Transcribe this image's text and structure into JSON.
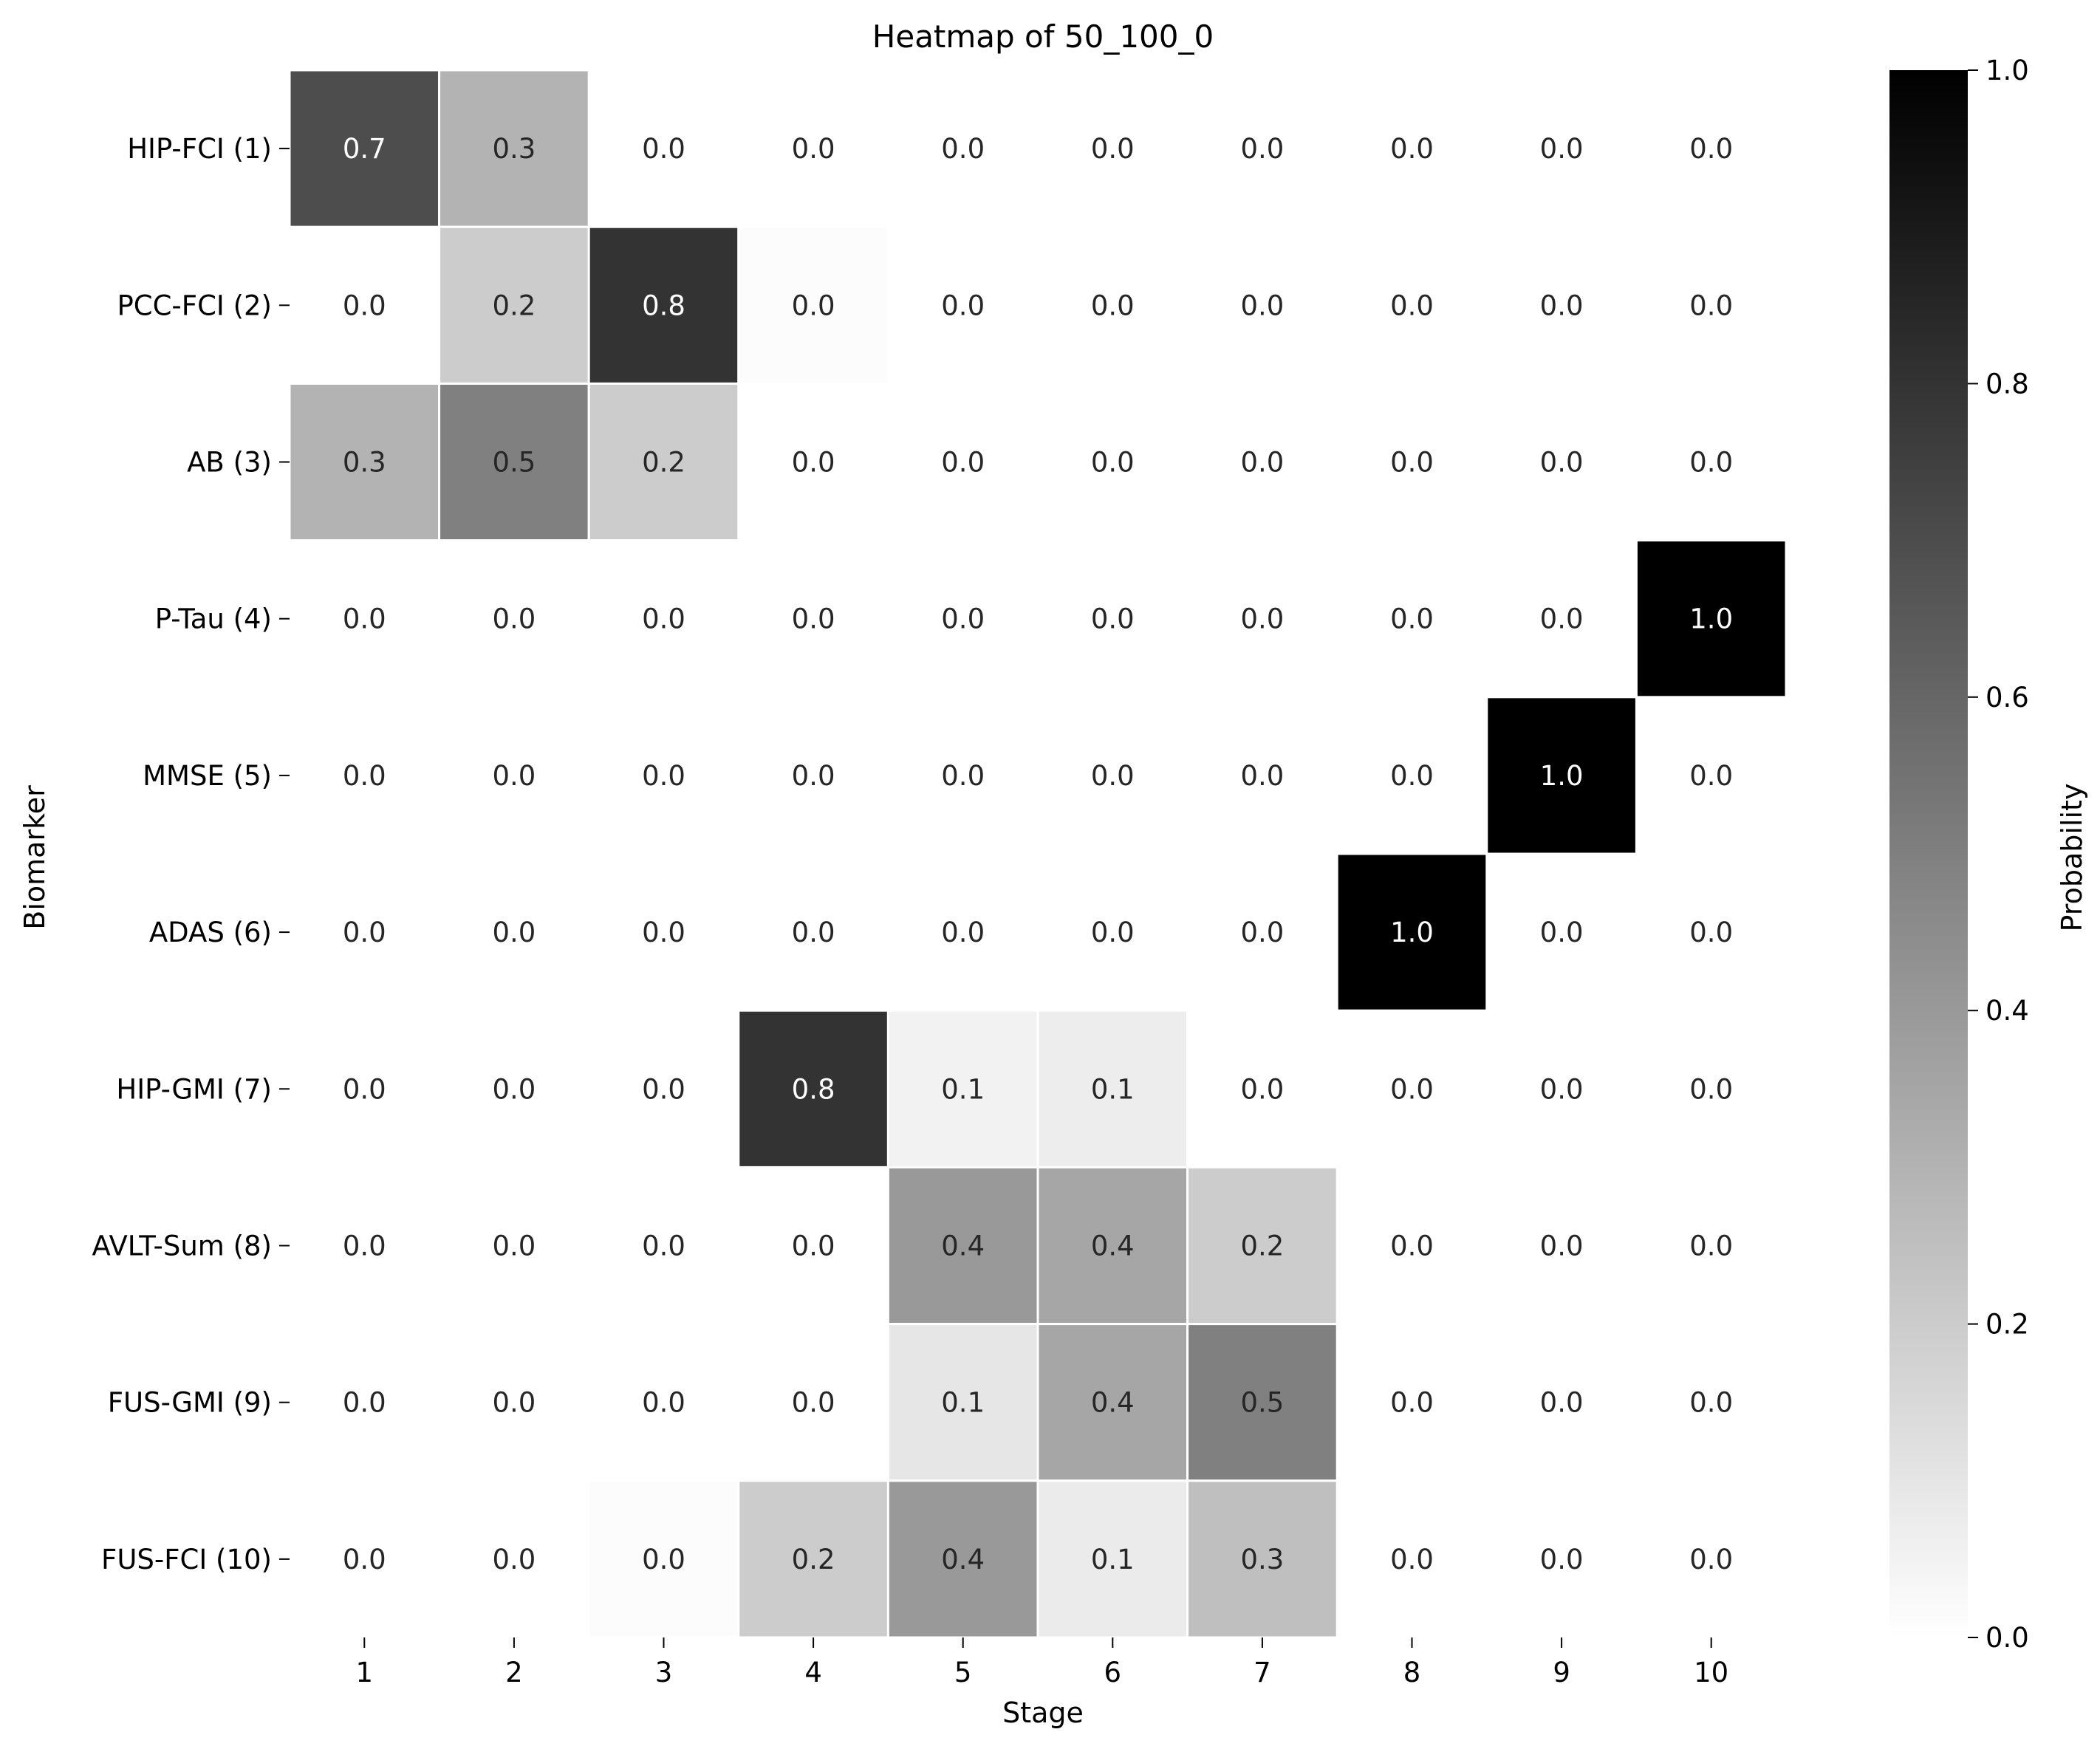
{
  "chart_data": {
    "type": "heatmap",
    "title": "Heatmap of 50_100_0",
    "xlabel": "Stage",
    "ylabel": "Biomarker",
    "x_categories": [
      "1",
      "2",
      "3",
      "4",
      "5",
      "6",
      "7",
      "8",
      "9",
      "10"
    ],
    "y_categories": [
      "HIP-FCI (1)",
      "PCC-FCI (2)",
      "AB (3)",
      "P-Tau (4)",
      "MMSE (5)",
      "ADAS (6)",
      "HIP-GMI (7)",
      "AVLT-Sum (8)",
      "FUS-GMI (9)",
      "FUS-FCI (10)"
    ],
    "values": [
      [
        0.7,
        0.3,
        0.0,
        0.0,
        0.0,
        0.0,
        0.0,
        0.0,
        0.0,
        0.0
      ],
      [
        0.0,
        0.2,
        0.8,
        0.01,
        0.0,
        0.0,
        0.0,
        0.0,
        0.0,
        0.0
      ],
      [
        0.3,
        0.5,
        0.2,
        0.0,
        0.0,
        0.0,
        0.0,
        0.0,
        0.0,
        0.0
      ],
      [
        0.0,
        0.0,
        0.0,
        0.0,
        0.0,
        0.0,
        0.0,
        0.0,
        0.0,
        1.0
      ],
      [
        0.0,
        0.0,
        0.0,
        0.0,
        0.0,
        0.0,
        0.0,
        0.0,
        1.0,
        0.0
      ],
      [
        0.0,
        0.0,
        0.0,
        0.0,
        0.0,
        0.0,
        0.0,
        1.0,
        0.0,
        0.0
      ],
      [
        0.0,
        0.0,
        0.0,
        0.8,
        0.05,
        0.07,
        0.0,
        0.0,
        0.0,
        0.0
      ],
      [
        0.0,
        0.0,
        0.0,
        0.0,
        0.4,
        0.35,
        0.2,
        0.0,
        0.0,
        0.0
      ],
      [
        0.0,
        0.0,
        0.0,
        0.0,
        0.1,
        0.35,
        0.5,
        0.0,
        0.0,
        0.0
      ],
      [
        0.0,
        0.0,
        0.01,
        0.2,
        0.4,
        0.08,
        0.25,
        0.0,
        0.0,
        0.0
      ]
    ],
    "cell_labels": [
      [
        "0.7",
        "0.3",
        "0.0",
        "0.0",
        "0.0",
        "0.0",
        "0.0",
        "0.0",
        "0.0",
        "0.0"
      ],
      [
        "0.0",
        "0.2",
        "0.8",
        "0.0",
        "0.0",
        "0.0",
        "0.0",
        "0.0",
        "0.0",
        "0.0"
      ],
      [
        "0.3",
        "0.5",
        "0.2",
        "0.0",
        "0.0",
        "0.0",
        "0.0",
        "0.0",
        "0.0",
        "0.0"
      ],
      [
        "0.0",
        "0.0",
        "0.0",
        "0.0",
        "0.0",
        "0.0",
        "0.0",
        "0.0",
        "0.0",
        "1.0"
      ],
      [
        "0.0",
        "0.0",
        "0.0",
        "0.0",
        "0.0",
        "0.0",
        "0.0",
        "0.0",
        "1.0",
        "0.0"
      ],
      [
        "0.0",
        "0.0",
        "0.0",
        "0.0",
        "0.0",
        "0.0",
        "0.0",
        "1.0",
        "0.0",
        "0.0"
      ],
      [
        "0.0",
        "0.0",
        "0.0",
        "0.8",
        "0.1",
        "0.1",
        "0.0",
        "0.0",
        "0.0",
        "0.0"
      ],
      [
        "0.0",
        "0.0",
        "0.0",
        "0.0",
        "0.4",
        "0.4",
        "0.2",
        "0.0",
        "0.0",
        "0.0"
      ],
      [
        "0.0",
        "0.0",
        "0.0",
        "0.0",
        "0.1",
        "0.4",
        "0.5",
        "0.0",
        "0.0",
        "0.0"
      ],
      [
        "0.0",
        "0.0",
        "0.0",
        "0.2",
        "0.4",
        "0.1",
        "0.3",
        "0.0",
        "0.0",
        "0.0"
      ]
    ],
    "colorbar": {
      "label": "Probability",
      "range": [
        0.0,
        1.0
      ],
      "ticks": [
        "0.0",
        "0.2",
        "0.4",
        "0.6",
        "0.8",
        "1.0"
      ],
      "tick_values": [
        0.0,
        0.2,
        0.4,
        0.6,
        0.8,
        1.0
      ],
      "colormap": "Greys",
      "low_color": "#ffffff",
      "high_color": "#000000"
    }
  }
}
